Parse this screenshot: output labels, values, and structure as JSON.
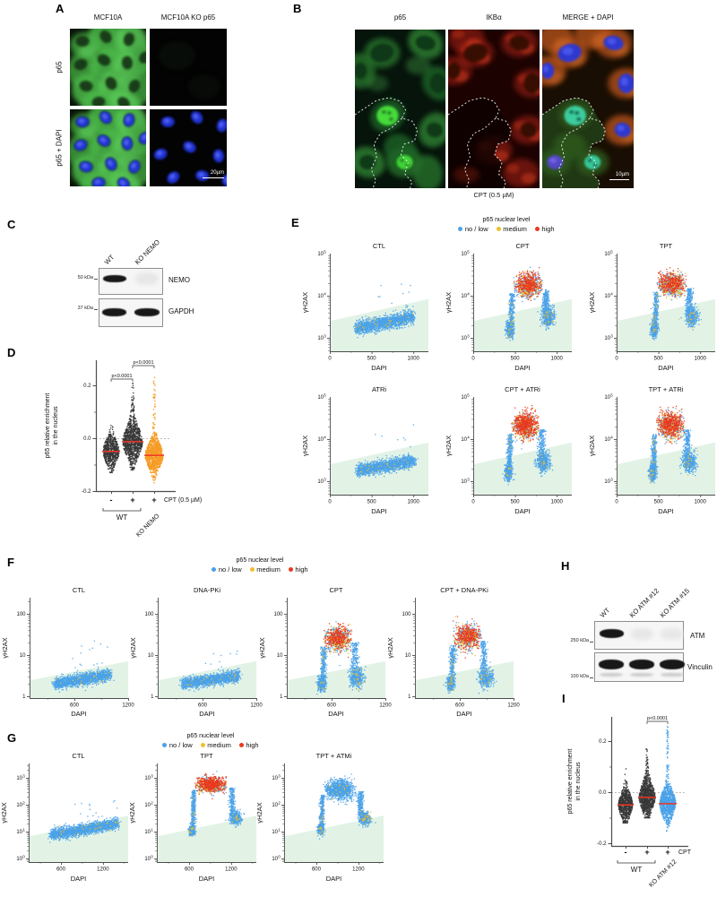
{
  "colors": {
    "blue": "#4aa2e8",
    "medium": "#f0bf2d",
    "high": "#e8391f",
    "orange": "#f59b24",
    "dark": "#373737",
    "median": "#ee3524",
    "wedge": "#e2f3e6",
    "axis": "#4c4c4c"
  },
  "panel_a": {
    "letter": "A",
    "col_headers": [
      "MCF10A",
      "MCF10A KO p65"
    ],
    "row_labels": [
      "p65",
      "p65 + DAPI"
    ],
    "scale_bar": "20µm"
  },
  "panel_b": {
    "letter": "B",
    "col_headers": [
      "p65",
      "IKBα",
      "MERGE + DAPI"
    ],
    "caption": "CPT (0.5 µM)",
    "scale_bar": "10µm"
  },
  "panel_c": {
    "letter": "C",
    "lane_labels": [
      "WT",
      "KO NEMO"
    ],
    "markers": [
      "50 kDa",
      "37 kDa"
    ],
    "band_labels": [
      "NEMO",
      "GAPDH"
    ]
  },
  "panel_d": {
    "letter": "D"
  },
  "panel_e": {
    "letter": "E"
  },
  "panel_f": {
    "letter": "F"
  },
  "panel_g": {
    "letter": "G"
  },
  "panel_h": {
    "letter": "H",
    "lane_labels": [
      "WT",
      "KO ATM #12",
      "KO ATM #15"
    ],
    "markers": [
      "250 kDa",
      "100 kDa"
    ],
    "band_labels": [
      "ATM",
      "Vinculin"
    ]
  },
  "panel_i": {
    "letter": "I"
  },
  "chart_data": {
    "d": {
      "type": "beeswarm",
      "ylabel_lines": [
        "p65 relative enrichment",
        "in the nucleus"
      ],
      "y_ticks": [
        {
          "label": "0.2",
          "value": 0.2
        },
        {
          "label": "0.0",
          "value": 0.0
        },
        {
          "label": "-0.2",
          "value": -0.2
        }
      ],
      "y_minor": [
        0.1,
        -0.1
      ],
      "zero_line": 0,
      "groups": [
        {
          "tick": "-",
          "color": "dark",
          "median": -0.05,
          "sd": 0.033,
          "min": -0.13,
          "max": 0.09,
          "n": 600
        },
        {
          "tick": "+",
          "color": "dark",
          "median": -0.013,
          "sd": 0.04,
          "min": -0.12,
          "max": 0.21,
          "n": 950,
          "upper_tail": true
        },
        {
          "tick": "+",
          "color": "orange",
          "median": -0.065,
          "sd": 0.034,
          "min": -0.19,
          "max": 0.235,
          "n": 950,
          "upper_tail": true
        }
      ],
      "treatment_label": "CPT (0.5 µM)",
      "bracket": {
        "label": "WT",
        "cols": [
          0,
          1
        ]
      },
      "rotated_label": "KO NEMO",
      "significance": [
        {
          "cols": [
            0,
            1
          ],
          "label": "p<0.0001"
        },
        {
          "cols": [
            1,
            2
          ],
          "label": "p<0.0001"
        }
      ]
    },
    "e": {
      "type": "scatter-grid",
      "legend": {
        "title": "p65 nuclear level",
        "items": [
          {
            "label": "no / low",
            "key": "blue"
          },
          {
            "label": "medium",
            "key": "medium"
          },
          {
            "label": "high",
            "key": "high"
          }
        ]
      },
      "xlabel": "DAPI",
      "ylabel": "γH2AX",
      "x_ticks": [
        0,
        500,
        1000
      ],
      "y_tick_exponents": [
        3,
        4,
        5
      ],
      "wedge_log": [
        3.4,
        3.92
      ],
      "plots": [
        {
          "title": "CTL",
          "pattern": "band",
          "x": [
            310,
            1000
          ],
          "ylog": [
            3.22,
            3.5
          ],
          "sd": 0.08,
          "n": 1700,
          "outliers": 12
        },
        {
          "title": "CPT",
          "pattern": "arch",
          "g1": [
            440,
            3.2
          ],
          "g2": [
            900,
            3.5
          ],
          "top": [
            480,
            840,
            4.22
          ],
          "top_sd": 0.13,
          "high": true,
          "red_frac": 0.42,
          "n": 2300
        },
        {
          "title": "TPT",
          "pattern": "arch",
          "g1": [
            450,
            3.2
          ],
          "g2": [
            900,
            3.5
          ],
          "top": [
            480,
            840,
            4.25
          ],
          "top_sd": 0.13,
          "high": true,
          "red_frac": 0.38,
          "n": 2300
        },
        {
          "title": "ATRi",
          "pattern": "band",
          "x": [
            330,
            1010
          ],
          "ylog": [
            3.25,
            3.48
          ],
          "sd": 0.07,
          "n": 1700,
          "outliers": 8
        },
        {
          "title": "CPT + ATRi",
          "pattern": "arch",
          "g1": [
            420,
            3.2
          ],
          "g2": [
            840,
            3.45
          ],
          "top": [
            450,
            800,
            4.3
          ],
          "top_sd": 0.15,
          "high": true,
          "red_frac": 0.55,
          "n": 2300
        },
        {
          "title": "TPT + ATRi",
          "pattern": "arch",
          "g1": [
            430,
            3.2
          ],
          "g2": [
            870,
            3.45
          ],
          "top": [
            470,
            820,
            4.3
          ],
          "top_sd": 0.15,
          "high": true,
          "red_frac": 0.5,
          "n": 2300
        }
      ]
    },
    "f": {
      "type": "scatter-grid",
      "legend": {
        "title": "p65 nuclear level",
        "items": [
          {
            "label": "no / low",
            "key": "blue"
          },
          {
            "label": "medium",
            "key": "medium"
          },
          {
            "label": "high",
            "key": "high"
          }
        ]
      },
      "xlabel": "DAPI",
      "ylabel": "γH2AX",
      "x_ticks": [
        600,
        1200
      ],
      "y_tick_labels": [
        "1",
        "10",
        "100"
      ],
      "y_tick_exponents": [
        0,
        1,
        2
      ],
      "wedge_log": [
        0.39,
        0.85
      ],
      "plots": [
        {
          "title": "CTL",
          "pattern": "band",
          "x": [
            380,
            1000
          ],
          "ylog": [
            0.3,
            0.52
          ],
          "sd": 0.07,
          "n": 1600,
          "outliers": 14
        },
        {
          "title": "DNA-PKi",
          "pattern": "band",
          "x": [
            380,
            1000
          ],
          "ylog": [
            0.3,
            0.5
          ],
          "sd": 0.07,
          "n": 1600,
          "outliers": 10
        },
        {
          "title": "CPT",
          "pattern": "arch",
          "g1": [
            490,
            0.3
          ],
          "g2": [
            880,
            0.45
          ],
          "top": [
            510,
            840,
            1.38
          ],
          "top_sd": 0.14,
          "high": true,
          "red_frac": 0.4,
          "n": 2100
        },
        {
          "title": "CPT + DNA-PKi",
          "pattern": "arch",
          "g1": [
            500,
            0.3
          ],
          "g2": [
            890,
            0.45
          ],
          "top": [
            520,
            850,
            1.42
          ],
          "top_sd": 0.14,
          "high": true,
          "red_frac": 0.42,
          "n": 2100
        }
      ]
    },
    "g": {
      "type": "scatter-grid",
      "legend": {
        "title": "p65 nuclear level",
        "items": [
          {
            "label": "no / low",
            "key": "blue"
          },
          {
            "label": "medium",
            "key": "medium"
          },
          {
            "label": "high",
            "key": "high"
          }
        ]
      },
      "xlabel": "DAPI",
      "ylabel": "γH2AX",
      "x_ticks": [
        600,
        1200
      ],
      "y_tick_exponents": [
        0,
        1,
        2,
        3
      ],
      "wedge_log": [
        0.83,
        1.6
      ],
      "plots": [
        {
          "title": "CTL",
          "pattern": "band",
          "x": [
            460,
            1420
          ],
          "ylog": [
            0.88,
            1.3
          ],
          "sd": 0.1,
          "n": 2000,
          "outliers": 14
        },
        {
          "title": "TPT",
          "pattern": "arch",
          "g1": [
            640,
            1.05
          ],
          "g2": [
            1270,
            1.5
          ],
          "top": [
            680,
            1160,
            2.72
          ],
          "top_sd": 0.13,
          "high": true,
          "red_frac": 0.45,
          "n": 2400
        },
        {
          "title": "TPT + ATMi",
          "pattern": "arch",
          "g1": [
            660,
            1.1
          ],
          "g2": [
            1290,
            1.5
          ],
          "top": [
            700,
            1170,
            2.58
          ],
          "top_sd": 0.18,
          "high": false,
          "n": 2400
        }
      ]
    },
    "i": {
      "type": "beeswarm",
      "ylabel_lines": [
        "p65 relative enrichment",
        "in the nucleus"
      ],
      "y_ticks": [
        {
          "label": "0.2",
          "value": 0.2
        },
        {
          "label": "0.0",
          "value": 0.0
        },
        {
          "label": "-0.2",
          "value": -0.2
        }
      ],
      "y_minor": [
        0.1,
        -0.1
      ],
      "zero_line": 0,
      "groups": [
        {
          "tick": "-",
          "color": "dark",
          "median": -0.05,
          "sd": 0.033,
          "min": -0.12,
          "max": 0.17,
          "n": 700
        },
        {
          "tick": "+",
          "color": "dark",
          "median": -0.02,
          "sd": 0.038,
          "min": -0.1,
          "max": 0.17,
          "n": 950,
          "upper_tail": true
        },
        {
          "tick": "+",
          "color": "blue",
          "median": -0.045,
          "sd": 0.036,
          "min": -0.17,
          "max": 0.26,
          "n": 950,
          "upper_tail": true
        }
      ],
      "treatment_label": "CPT",
      "bracket": {
        "label": "WT",
        "cols": [
          0,
          1
        ]
      },
      "rotated_label": "KO ATM #12",
      "significance": [
        {
          "cols": [
            1,
            2
          ],
          "label": "p<0.0001"
        }
      ]
    }
  }
}
